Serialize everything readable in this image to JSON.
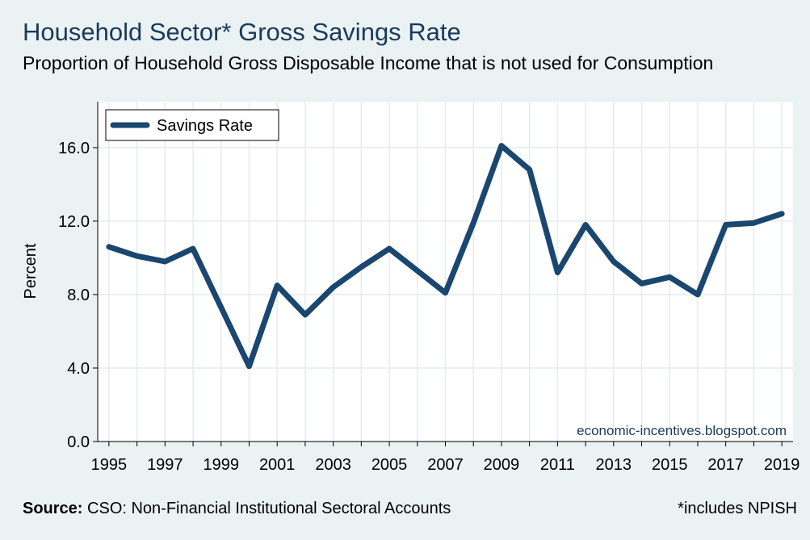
{
  "title": "Household Sector* Gross Savings Rate",
  "subtitle": "Proportion of Household Gross Disposable Income that is not used for Consumption",
  "footer": {
    "source_label": "Source:",
    "source_text": "CSO: Non-Financial Institutional Sectoral Accounts",
    "note": "*includes NPISH"
  },
  "watermark": "economic-incentives.blogspot.com",
  "colors": {
    "background": "#eaf2f3",
    "plot_background": "#ffffff",
    "line": "#1a476f",
    "title": "#1a3a5c",
    "grid": "#e5ecee"
  },
  "chart_data": {
    "type": "line",
    "ylabel": "Percent",
    "xlabel": "",
    "ylim": [
      0,
      18.5
    ],
    "xlim": [
      1994.6,
      2019.4
    ],
    "yticks": [
      0,
      4,
      8,
      12,
      16
    ],
    "ytick_labels": [
      "0.0",
      "4.0",
      "8.0",
      "12.0",
      "16.0"
    ],
    "xtick_labels": [
      "1995",
      "1997",
      "1999",
      "2001",
      "2003",
      "2005",
      "2007",
      "2009",
      "2011",
      "2013",
      "2015",
      "2017",
      "2019"
    ],
    "legend_position": "top-left",
    "grid": true,
    "x": [
      1995,
      1996,
      1997,
      1998,
      1999,
      2000,
      2001,
      2002,
      2003,
      2004,
      2005,
      2006,
      2007,
      2008,
      2009,
      2010,
      2011,
      2012,
      2013,
      2014,
      2015,
      2016,
      2017,
      2018,
      2019
    ],
    "series": [
      {
        "name": "Savings Rate",
        "values": [
          10.6,
          10.1,
          9.8,
          10.5,
          7.3,
          4.1,
          8.5,
          6.9,
          8.4,
          9.5,
          10.5,
          9.3,
          8.1,
          11.9,
          16.1,
          14.8,
          9.2,
          11.8,
          9.8,
          8.6,
          8.95,
          8.0,
          11.8,
          11.9,
          12.4
        ]
      }
    ]
  }
}
